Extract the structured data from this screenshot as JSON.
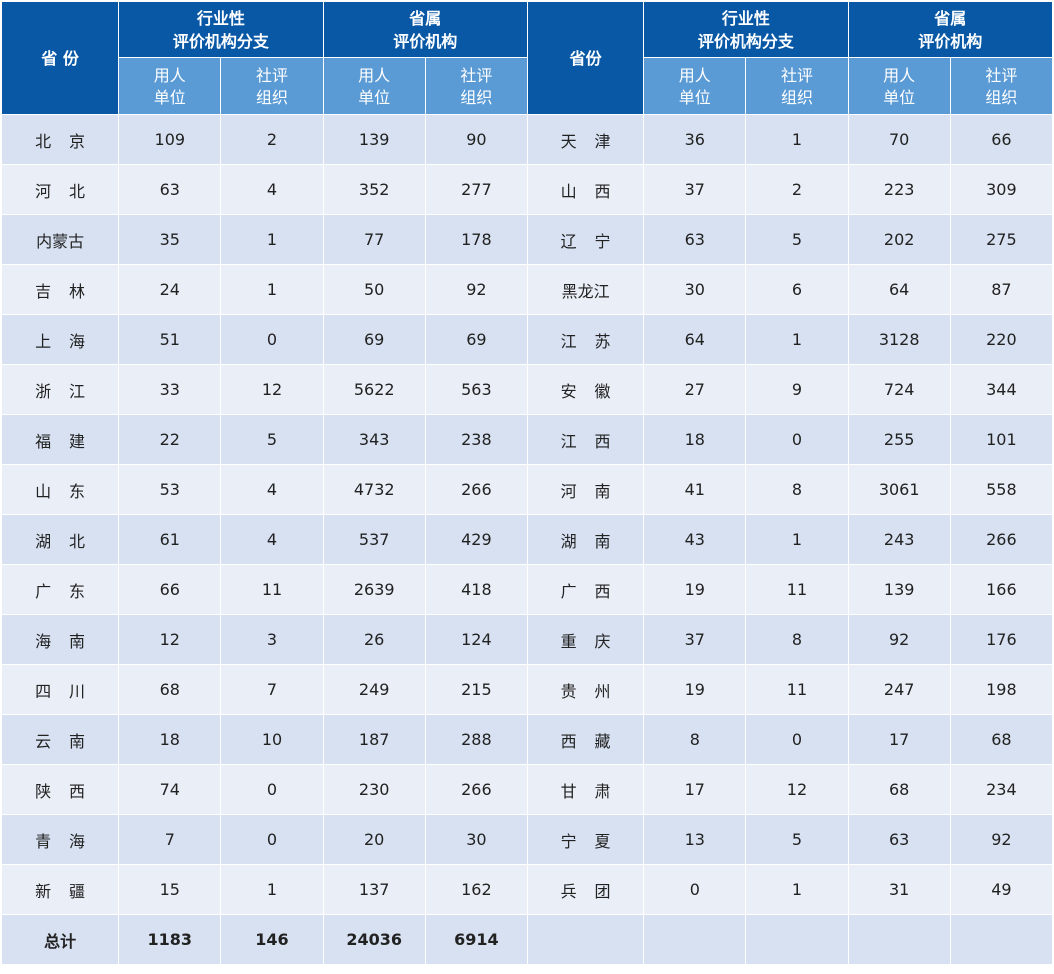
{
  "header": {
    "province_label": "省 份",
    "province_label_right": "省份",
    "group1_line1": "行业性",
    "group1_line2": "评价机构分支",
    "group2_line1": "省属",
    "group2_line2": "评价机构",
    "sub_employer_line1": "用人",
    "sub_employer_line2": "单位",
    "sub_social_line1": "社评",
    "sub_social_line2": "组织"
  },
  "chart_data": {
    "type": "table",
    "columns": [
      "省份",
      "行业性评价机构分支·用人单位",
      "行业性评价机构分支·社评组织",
      "省属评价机构·用人单位",
      "省属评价机构·社评组织"
    ],
    "rows": [
      {
        "left": {
          "name": "北 京",
          "v": [
            "109",
            "2",
            "139",
            "90"
          ]
        },
        "right": {
          "name": "天 津",
          "v": [
            "36",
            "1",
            "70",
            "66"
          ]
        }
      },
      {
        "left": {
          "name": "河 北",
          "v": [
            "63",
            "4",
            "352",
            "277"
          ]
        },
        "right": {
          "name": "山 西",
          "v": [
            "37",
            "2",
            "223",
            "309"
          ]
        }
      },
      {
        "left": {
          "name": "内蒙古",
          "v": [
            "35",
            "1",
            "77",
            "178"
          ]
        },
        "right": {
          "name": "辽 宁",
          "v": [
            "63",
            "5",
            "202",
            "275"
          ]
        }
      },
      {
        "left": {
          "name": "吉 林",
          "v": [
            "24",
            "1",
            "50",
            "92"
          ]
        },
        "right": {
          "name": "黑龙江",
          "v": [
            "30",
            "6",
            "64",
            "87"
          ]
        }
      },
      {
        "left": {
          "name": "上 海",
          "v": [
            "51",
            "0",
            "69",
            "69"
          ]
        },
        "right": {
          "name": "江 苏",
          "v": [
            "64",
            "1",
            "3128",
            "220"
          ]
        }
      },
      {
        "left": {
          "name": "浙 江",
          "v": [
            "33",
            "12",
            "5622",
            "563"
          ]
        },
        "right": {
          "name": "安 徽",
          "v": [
            "27",
            "9",
            "724",
            "344"
          ]
        }
      },
      {
        "left": {
          "name": "福 建",
          "v": [
            "22",
            "5",
            "343",
            "238"
          ]
        },
        "right": {
          "name": "江 西",
          "v": [
            "18",
            "0",
            "255",
            "101"
          ]
        }
      },
      {
        "left": {
          "name": "山 东",
          "v": [
            "53",
            "4",
            "4732",
            "266"
          ]
        },
        "right": {
          "name": "河 南",
          "v": [
            "41",
            "8",
            "3061",
            "558"
          ]
        }
      },
      {
        "left": {
          "name": "湖 北",
          "v": [
            "61",
            "4",
            "537",
            "429"
          ]
        },
        "right": {
          "name": "湖 南",
          "v": [
            "43",
            "1",
            "243",
            "266"
          ]
        }
      },
      {
        "left": {
          "name": "广 东",
          "v": [
            "66",
            "11",
            "2639",
            "418"
          ]
        },
        "right": {
          "name": "广 西",
          "v": [
            "19",
            "11",
            "139",
            "166"
          ]
        }
      },
      {
        "left": {
          "name": "海 南",
          "v": [
            "12",
            "3",
            "26",
            "124"
          ]
        },
        "right": {
          "name": "重 庆",
          "v": [
            "37",
            "8",
            "92",
            "176"
          ]
        }
      },
      {
        "left": {
          "name": "四 川",
          "v": [
            "68",
            "7",
            "249",
            "215"
          ]
        },
        "right": {
          "name": "贵 州",
          "v": [
            "19",
            "11",
            "247",
            "198"
          ]
        }
      },
      {
        "left": {
          "name": "云 南",
          "v": [
            "18",
            "10",
            "187",
            "288"
          ]
        },
        "right": {
          "name": "西 藏",
          "v": [
            "8",
            "0",
            "17",
            "68"
          ]
        }
      },
      {
        "left": {
          "name": "陕 西",
          "v": [
            "74",
            "0",
            "230",
            "266"
          ]
        },
        "right": {
          "name": "甘 肃",
          "v": [
            "17",
            "12",
            "68",
            "234"
          ]
        }
      },
      {
        "left": {
          "name": "青 海",
          "v": [
            "7",
            "0",
            "20",
            "30"
          ]
        },
        "right": {
          "name": "宁 夏",
          "v": [
            "13",
            "5",
            "63",
            "92"
          ]
        }
      },
      {
        "left": {
          "name": "新 疆",
          "v": [
            "15",
            "1",
            "137",
            "162"
          ]
        },
        "right": {
          "name": "兵 团",
          "v": [
            "0",
            "1",
            "31",
            "49"
          ]
        }
      }
    ],
    "total": {
      "name": "总计",
      "v": [
        "1183",
        "146",
        "24036",
        "6914"
      ]
    }
  },
  "colors": {
    "header_dark": "#0858a6",
    "header_light": "#5b9bd5",
    "row_even": "#d7e1f1",
    "row_odd": "#e9eef7"
  }
}
